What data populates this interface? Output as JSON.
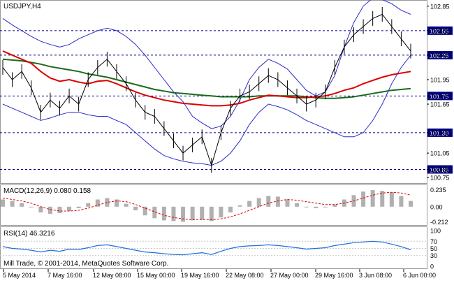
{
  "chart": {
    "symbol": "USDJPY,H4",
    "copyright": "Mill Trade, © 2001-2014, MetaQuotes Software Corp.",
    "colors": {
      "price": "#000000",
      "bollinger": "#2a2acc",
      "ma_red": "#dd0000",
      "ma_green": "#1b6b1b",
      "level": "#000088",
      "label_bg": "#000080",
      "macd_hist": "#b0b0b0",
      "macd_signal": "#dd0000",
      "rsi": "#1e6fe0",
      "grid": "#c8c8c8",
      "border": "#999999"
    }
  },
  "price_axis": {
    "ticks": [
      "102.85",
      "102.55",
      "102.25",
      "101.95",
      "101.75",
      "101.65",
      "101.30",
      "101.05",
      "100.85",
      "100.75"
    ]
  },
  "levels": [
    "102.55",
    "102.25",
    "101.75",
    "101.30",
    "100.85"
  ],
  "macd": {
    "label": "MACD(12,26,9) 0.080 0.158",
    "ticks": [
      "0.235",
      "0.00",
      "-0.212"
    ]
  },
  "rsi": {
    "label": "RSI(14) 46.3216",
    "ticks": [
      "100",
      "70",
      "50",
      "30",
      "0"
    ]
  },
  "time_axis": {
    "labels": [
      "5 May 2014",
      "7 May 16:00",
      "12 May 08:00",
      "15 May 00:00",
      "19 May 16:00",
      "22 May 08:00",
      "27 May 00:00",
      "29 May 16:00",
      "3 Jun 08:00",
      "6 Jun 00:00"
    ]
  },
  "chart_data": {
    "type": "line",
    "title": "USDJPY,H4",
    "ylim": [
      100.7,
      102.9
    ],
    "series": [
      {
        "values": [
          102.1,
          101.95,
          102.05,
          101.85,
          101.55,
          101.7,
          101.6,
          101.75,
          101.65,
          101.95,
          102.1,
          102.2,
          102.05,
          101.9,
          101.7,
          101.55,
          101.5,
          101.35,
          101.2,
          101.05,
          101.15,
          101.25,
          100.9,
          101.3,
          101.6,
          101.75,
          101.8,
          101.9,
          102.0,
          101.95,
          101.85,
          101.75,
          101.65,
          101.7,
          101.8,
          102.1,
          102.35,
          102.5,
          102.6,
          102.7,
          102.75,
          102.6,
          102.45,
          102.3
        ]
      },
      {
        "values": [
          102.3,
          102.25,
          102.2,
          102.15,
          102.05,
          101.97,
          101.93,
          101.95,
          101.92,
          101.9,
          101.93,
          101.94,
          101.9,
          101.85,
          101.8,
          101.76,
          101.73,
          101.7,
          101.68,
          101.66,
          101.65,
          101.64,
          101.63,
          101.63,
          101.64,
          101.66,
          101.7,
          101.73,
          101.76,
          101.75,
          101.74,
          101.73,
          101.73,
          101.74,
          101.75,
          101.78,
          101.82,
          101.85,
          101.9,
          101.94,
          101.98,
          102.01,
          102.03,
          102.05
        ]
      },
      {
        "values": [
          102.2,
          102.19,
          102.18,
          102.16,
          102.14,
          102.11,
          102.09,
          102.07,
          102.05,
          102.02,
          102.0,
          101.98,
          101.95,
          101.92,
          101.89,
          101.86,
          101.83,
          101.81,
          101.79,
          101.78,
          101.77,
          101.76,
          101.75,
          101.74,
          101.74,
          101.74,
          101.74,
          101.75,
          101.75,
          101.75,
          101.75,
          101.75,
          101.74,
          101.73,
          101.72,
          101.72,
          101.73,
          101.74,
          101.76,
          101.78,
          101.8,
          101.82,
          101.83,
          101.84
        ]
      },
      {
        "values": [
          102.7,
          102.62,
          102.55,
          102.48,
          102.42,
          102.38,
          102.35,
          102.38,
          102.45,
          102.5,
          102.55,
          102.58,
          102.55,
          102.48,
          102.38,
          102.25,
          102.1,
          101.95,
          101.8,
          101.68,
          101.5,
          101.42,
          101.35,
          101.38,
          101.5,
          101.7,
          101.95,
          102.1,
          102.2,
          102.15,
          102.08,
          101.95,
          101.82,
          101.75,
          101.8,
          102.0,
          102.35,
          102.65,
          102.85,
          102.95,
          102.93,
          102.88,
          102.8,
          102.75
        ]
      },
      {
        "values": [
          101.65,
          101.6,
          101.55,
          101.5,
          101.45,
          101.48,
          101.52,
          101.55,
          101.55,
          101.52,
          101.5,
          101.5,
          101.45,
          101.4,
          101.3,
          101.2,
          101.1,
          101.02,
          100.98,
          100.95,
          100.93,
          100.92,
          100.9,
          100.95,
          101.05,
          101.2,
          101.4,
          101.55,
          101.65,
          101.62,
          101.58,
          101.52,
          101.45,
          101.4,
          101.35,
          101.3,
          101.25,
          101.25,
          101.3,
          101.45,
          101.65,
          101.9,
          102.1,
          102.25
        ]
      }
    ],
    "macd": {
      "histogram": [
        0.1,
        0.08,
        0.05,
        0.0,
        -0.08,
        -0.1,
        -0.09,
        -0.06,
        -0.02,
        0.05,
        0.1,
        0.12,
        0.1,
        0.04,
        -0.05,
        -0.12,
        -0.16,
        -0.19,
        -0.2,
        -0.21,
        -0.19,
        -0.18,
        -0.2,
        -0.15,
        -0.08,
        0.02,
        0.08,
        0.12,
        0.15,
        0.14,
        0.1,
        0.05,
        0.0,
        -0.02,
        -0.01,
        0.03,
        0.1,
        0.16,
        0.21,
        0.23,
        0.22,
        0.2,
        0.15,
        0.08
      ],
      "signal": [
        0.12,
        0.1,
        0.08,
        0.05,
        0.0,
        -0.04,
        -0.06,
        -0.06,
        -0.05,
        -0.02,
        0.02,
        0.06,
        0.08,
        0.07,
        0.03,
        -0.02,
        -0.07,
        -0.12,
        -0.15,
        -0.17,
        -0.18,
        -0.18,
        -0.18,
        -0.17,
        -0.14,
        -0.1,
        -0.05,
        0.0,
        0.05,
        0.08,
        0.1,
        0.09,
        0.07,
        0.05,
        0.03,
        0.03,
        0.05,
        0.08,
        0.12,
        0.16,
        0.19,
        0.2,
        0.19,
        0.16
      ]
    },
    "rsi": [
      55,
      50,
      48,
      45,
      40,
      45,
      42,
      48,
      47,
      52,
      58,
      60,
      55,
      50,
      45,
      40,
      38,
      35,
      33,
      32,
      35,
      38,
      33,
      42,
      50,
      55,
      57,
      58,
      60,
      58,
      55,
      52,
      48,
      50,
      52,
      58,
      62,
      66,
      68,
      70,
      68,
      62,
      55,
      46
    ]
  }
}
